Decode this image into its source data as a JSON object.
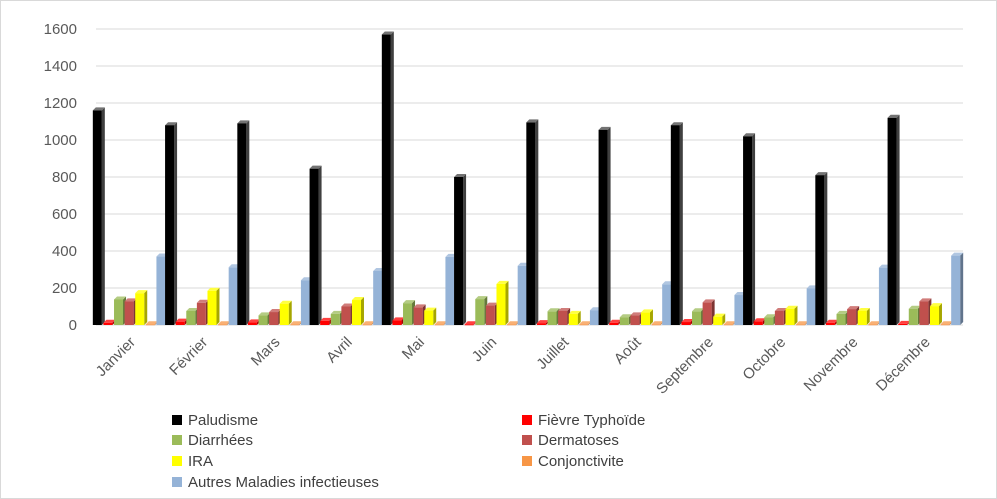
{
  "chart_data": {
    "type": "bar",
    "style": "3d-clustered-column",
    "categories": [
      "Janvier",
      "Février",
      "Mars",
      "Avril",
      "Mai",
      "Juin",
      "Juillet",
      "Août",
      "Septembre",
      "Octobre",
      "Novembre",
      "Décembre"
    ],
    "series": [
      {
        "name": "Paludisme",
        "color": "#000000",
        "values": [
          1160,
          1080,
          1090,
          845,
          1570,
          800,
          1095,
          1055,
          1080,
          1020,
          810,
          1120
        ]
      },
      {
        "name": "Fièvre Typhoïde",
        "color": "#ff0000",
        "values": [
          12,
          18,
          14,
          22,
          25,
          4,
          10,
          12,
          16,
          20,
          12,
          6
        ]
      },
      {
        "name": "Diarrhées",
        "color": "#9bbb59",
        "values": [
          138,
          76,
          52,
          60,
          118,
          140,
          74,
          42,
          74,
          42,
          60,
          88
        ]
      },
      {
        "name": "Dermatoses",
        "color": "#c0504d",
        "values": [
          128,
          120,
          70,
          100,
          95,
          105,
          76,
          52,
          122,
          76,
          86,
          128
        ]
      },
      {
        "name": "IRA",
        "color": "#ffff00",
        "values": [
          172,
          185,
          115,
          135,
          78,
          222,
          60,
          68,
          45,
          88,
          76,
          102
        ]
      },
      {
        "name": "Conjonctivite",
        "color": "#f79646",
        "values": [
          4,
          4,
          4,
          4,
          4,
          4,
          4,
          4,
          4,
          4,
          4,
          4
        ]
      },
      {
        "name": "Autres Maladies infectieuses",
        "color": "#95b3d7",
        "values": [
          370,
          312,
          242,
          292,
          368,
          320,
          80,
          220,
          162,
          198,
          310,
          375
        ]
      }
    ],
    "title": "",
    "xlabel": "",
    "ylabel": "",
    "ylim": [
      0,
      1600
    ],
    "yticks": [
      0,
      200,
      400,
      600,
      800,
      1000,
      1200,
      1400,
      1600
    ],
    "grid": true,
    "legend_position": "bottom"
  }
}
